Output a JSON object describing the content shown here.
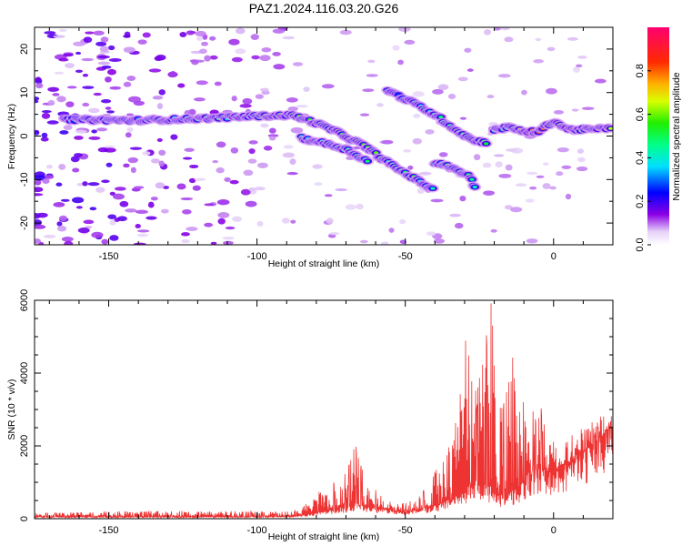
{
  "title": "PAZ1.2024.116.03.20.G26",
  "chart_data": [
    {
      "type": "heatmap",
      "xlabel": "Height of straight line (km)",
      "ylabel": "Frequency (Hz)",
      "xlim": [
        -175,
        20
      ],
      "ylim": [
        -25,
        25
      ],
      "x_ticks": [
        -150,
        -100,
        -50,
        0
      ],
      "x_tick_labels": [
        "-150",
        "-100",
        "-50",
        "0"
      ],
      "y_ticks": [
        -20,
        -10,
        0,
        10,
        20
      ],
      "y_tick_labels": [
        "-20",
        "-10",
        "0",
        "10",
        "20"
      ],
      "colorbar": {
        "label": "Normalized spectral amplitude",
        "range": [
          0,
          1
        ],
        "ticks": [
          0.0,
          0.2,
          0.4,
          0.6,
          0.8
        ],
        "tick_labels": [
          "0.0",
          "0.2",
          "0.4",
          "0.6",
          "0.8"
        ],
        "colormap": "white-purple-blue-cyan-green-yellow-red-pink"
      },
      "ridges": [
        {
          "name": "",
          "points": [
            [
              -165,
              3.8,
              0.35
            ],
            [
              -140,
              3.6,
              0.4
            ],
            [
              -120,
              4.0,
              0.45
            ],
            [
              -100,
              4.6,
              0.5
            ],
            [
              -88,
              4.8,
              0.55
            ],
            [
              -80,
              3.0,
              0.55
            ],
            [
              -72,
              0.6,
              0.6
            ],
            [
              -64,
              -2.2,
              0.6
            ],
            [
              -55,
              -6.5,
              0.55
            ],
            [
              -45,
              -10.5,
              0.45
            ],
            [
              -40,
              -12.5,
              0.4
            ]
          ]
        },
        {
          "name": "",
          "points": [
            [
              -85,
              -0.5,
              0.45
            ],
            [
              -78,
              -1.5,
              0.5
            ],
            [
              -70,
              -3.0,
              0.5
            ],
            [
              -62,
              -6.0,
              0.45
            ]
          ]
        },
        {
          "name": "",
          "points": [
            [
              -56,
              10.5,
              0.3
            ],
            [
              -50,
              8.5,
              0.35
            ],
            [
              -44,
              6.5,
              0.45
            ],
            [
              -38,
              4.0,
              0.5
            ],
            [
              -32,
              1.0,
              0.55
            ],
            [
              -27,
              -1.0,
              0.55
            ],
            [
              -22,
              -1.5,
              0.5
            ]
          ]
        },
        {
          "name": "",
          "points": [
            [
              -40,
              -6.0,
              0.45
            ],
            [
              -33,
              -7.5,
              0.45
            ],
            [
              -28,
              -9.5,
              0.5
            ],
            [
              -26,
              -12.5,
              0.4
            ]
          ]
        },
        {
          "name": "",
          "points": [
            [
              -20,
              1.5,
              0.5
            ],
            [
              -15,
              2.0,
              0.6
            ],
            [
              -10,
              1.0,
              0.8
            ],
            [
              -5,
              1.0,
              0.85
            ],
            [
              0,
              3.5,
              0.6
            ],
            [
              5,
              1.5,
              0.75
            ],
            [
              12,
              1.5,
              0.75
            ],
            [
              20,
              1.8,
              0.65
            ]
          ]
        }
      ]
    },
    {
      "type": "line",
      "xlabel": "Height of straight line (km)",
      "ylabel": "SNR (10 * v/v)",
      "xlim": [
        -175,
        20
      ],
      "ylim": [
        0,
        6000
      ],
      "x_ticks": [
        -150,
        -100,
        -50,
        0
      ],
      "x_tick_labels": [
        "-150",
        "-100",
        "-50",
        "0"
      ],
      "y_ticks": [
        0,
        2000,
        4000,
        6000
      ],
      "y_tick_labels": [
        "0",
        "2000",
        "4000",
        "6000"
      ],
      "line_color": "#ee3333",
      "envelope": {
        "x": [
          -175,
          -150,
          -120,
          -100,
          -90,
          -85,
          -80,
          -75,
          -70,
          -67,
          -64,
          -60,
          -56,
          -52,
          -48,
          -45,
          -42,
          -38,
          -35,
          -32,
          -30,
          -28,
          -26,
          -24,
          -22,
          -21,
          -20,
          -18,
          -16,
          -14,
          -12,
          -10,
          -8,
          -6,
          -4,
          -2,
          0,
          3,
          6,
          10,
          14,
          18,
          20
        ],
        "peak": [
          160,
          200,
          220,
          200,
          200,
          300,
          700,
          1000,
          1400,
          2200,
          1200,
          900,
          500,
          400,
          500,
          650,
          1100,
          1700,
          2500,
          3000,
          5400,
          4200,
          3500,
          4700,
          5400,
          6100,
          5000,
          3100,
          3500,
          4600,
          3800,
          3500,
          3300,
          3000,
          3100,
          2500,
          2200,
          2100,
          2300,
          2500,
          2800,
          2900,
          2950
        ],
        "base": [
          50,
          50,
          50,
          50,
          60,
          80,
          150,
          250,
          300,
          400,
          350,
          300,
          250,
          200,
          200,
          250,
          300,
          400,
          500,
          600,
          800,
          900,
          1000,
          1000,
          900,
          800,
          700,
          600,
          600,
          700,
          800,
          1000,
          1200,
          1300,
          1400,
          1300,
          1200,
          1400,
          1600,
          1800,
          2100,
          2400,
          2500
        ]
      }
    }
  ]
}
